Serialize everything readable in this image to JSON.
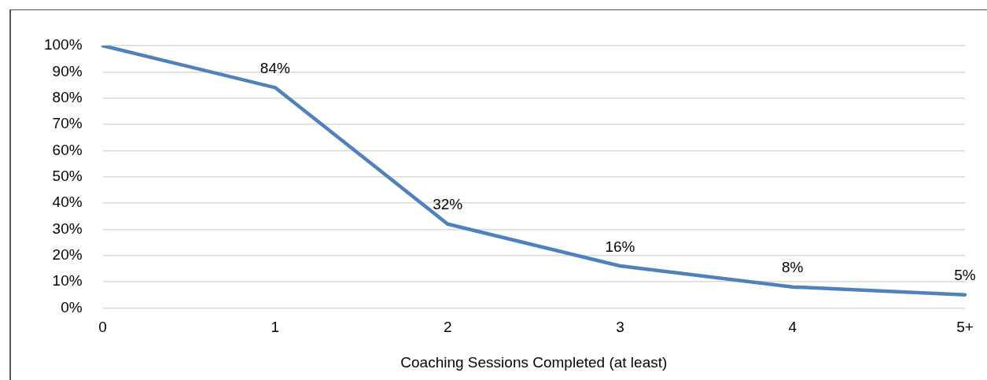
{
  "chart_data": {
    "type": "line",
    "xlabel": "Coaching Sessions Completed (at least)",
    "categories": [
      "0",
      "1",
      "2",
      "3",
      "4",
      "5+"
    ],
    "series": [
      {
        "color": "#4f81bd",
        "values": [
          100,
          84,
          32,
          16,
          8,
          5
        ],
        "value_labels": [
          null,
          "84%",
          "32%",
          "16%",
          "8%",
          "5%"
        ]
      }
    ],
    "ylim": [
      0,
      100
    ],
    "yticks": [
      {
        "value": 0,
        "label": "0%"
      },
      {
        "value": 10,
        "label": "10%"
      },
      {
        "value": 20,
        "label": "20%"
      },
      {
        "value": 30,
        "label": "30%"
      },
      {
        "value": 40,
        "label": "40%"
      },
      {
        "value": 50,
        "label": "50%"
      },
      {
        "value": 60,
        "label": "60%"
      },
      {
        "value": 70,
        "label": "70%"
      },
      {
        "value": 80,
        "label": "80%"
      },
      {
        "value": 90,
        "label": "90%"
      },
      {
        "value": 100,
        "label": "100%"
      }
    ],
    "grid": "y",
    "legend": false,
    "marker": "none",
    "line_style": "solid"
  }
}
